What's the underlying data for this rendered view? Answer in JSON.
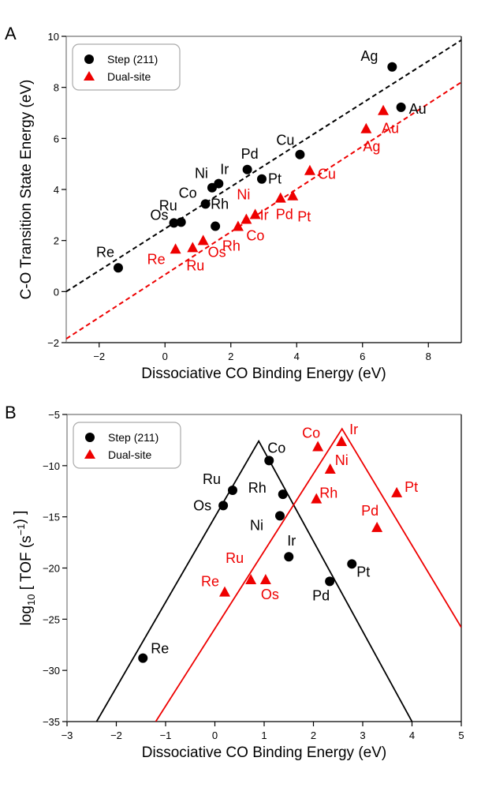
{
  "colors": {
    "step": "#000000",
    "dual": "#ee0000"
  },
  "chart_data": [
    {
      "panel": "A",
      "type": "scatter",
      "xlabel": "Dissociative CO Binding Energy (eV)",
      "ylabel": "C-O Transition State Energy (eV)",
      "xlim": [
        -3,
        9
      ],
      "ylim": [
        -2,
        10
      ],
      "xticks": [
        -2,
        0,
        2,
        4,
        6,
        8
      ],
      "yticks": [
        -2,
        0,
        2,
        4,
        6,
        8,
        10
      ],
      "legend": {
        "placement": "top-left",
        "entries": [
          "Step (211)",
          "Dual-site"
        ]
      },
      "series": [
        {
          "name": "Step (211)",
          "marker": "circle",
          "color": "#000000",
          "points": [
            {
              "label": "Re",
              "x": -1.42,
              "y": 0.93
            },
            {
              "label": "Os",
              "x": 0.27,
              "y": 2.69
            },
            {
              "label": "Ru",
              "x": 0.49,
              "y": 2.72
            },
            {
              "label": "Co",
              "x": 1.23,
              "y": 3.43
            },
            {
              "label": "Ni",
              "x": 1.43,
              "y": 4.07
            },
            {
              "label": "Ir",
              "x": 1.63,
              "y": 4.23
            },
            {
              "label": "Rh",
              "x": 1.53,
              "y": 2.56
            },
            {
              "label": "Pd",
              "x": 2.5,
              "y": 4.78
            },
            {
              "label": "Pt",
              "x": 2.94,
              "y": 4.41
            },
            {
              "label": "Cu",
              "x": 4.1,
              "y": 5.37
            },
            {
              "label": "Ag",
              "x": 6.9,
              "y": 8.8
            },
            {
              "label": "Au",
              "x": 7.17,
              "y": 7.22
            }
          ],
          "fit_line": {
            "x": [
              -3,
              9
            ],
            "y": [
              0.0,
              9.85
            ],
            "style": "dashed"
          }
        },
        {
          "name": "Dual-site",
          "marker": "triangle",
          "color": "#ee0000",
          "points": [
            {
              "label": "Re",
              "x": 0.32,
              "y": 1.64
            },
            {
              "label": "Ru",
              "x": 0.84,
              "y": 1.7
            },
            {
              "label": "Os",
              "x": 1.16,
              "y": 1.98
            },
            {
              "label": "Rh",
              "x": 2.22,
              "y": 2.53
            },
            {
              "label": "Co",
              "x": 2.47,
              "y": 2.81
            },
            {
              "label": "Ni",
              "x": 2.47,
              "y": 2.81
            },
            {
              "label": "Ir",
              "x": 2.74,
              "y": 3.0
            },
            {
              "label": "Pd",
              "x": 3.51,
              "y": 3.64
            },
            {
              "label": "Pt",
              "x": 3.88,
              "y": 3.73
            },
            {
              "label": "Cu",
              "x": 4.4,
              "y": 4.72
            },
            {
              "label": "Ag",
              "x": 6.11,
              "y": 6.36
            },
            {
              "label": "Au",
              "x": 6.63,
              "y": 7.07
            }
          ],
          "fit_line": {
            "x": [
              -3,
              9
            ],
            "y": [
              -1.85,
              8.2
            ],
            "style": "dashed"
          }
        }
      ]
    },
    {
      "panel": "B",
      "type": "scatter",
      "xlabel": "Dissociative CO Binding Energy (eV)",
      "ylabel_prefix": "log",
      "ylabel_sub": "10",
      "ylabel_main": "[ TOF (s",
      "ylabel_sup": "−1",
      "ylabel_suffix": ") ]",
      "xlim": [
        -3,
        5
      ],
      "ylim": [
        -35,
        -5
      ],
      "xticks": [
        -3,
        -2,
        -1,
        0,
        1,
        2,
        3,
        4,
        5
      ],
      "yticks": [
        -35,
        -30,
        -25,
        -20,
        -15,
        -10,
        -5
      ],
      "legend": {
        "placement": "top-left",
        "entries": [
          "Step (211)",
          "Dual-site"
        ]
      },
      "series": [
        {
          "name": "Step (211)",
          "marker": "circle",
          "color": "#000000",
          "points": [
            {
              "label": "Re",
              "x": -1.46,
              "y": -28.8
            },
            {
              "label": "Os",
              "x": 0.17,
              "y": -13.9
            },
            {
              "label": "Ru",
              "x": 0.36,
              "y": -12.4
            },
            {
              "label": "Co",
              "x": 1.1,
              "y": -9.5
            },
            {
              "label": "Rh",
              "x": 1.38,
              "y": -12.8
            },
            {
              "label": "Ni",
              "x": 1.32,
              "y": -14.9
            },
            {
              "label": "Ir",
              "x": 1.5,
              "y": -18.9
            },
            {
              "label": "Pd",
              "x": 2.33,
              "y": -21.3
            },
            {
              "label": "Pt",
              "x": 2.78,
              "y": -19.6
            }
          ],
          "volcano": {
            "x": [
              -2.4,
              0.89,
              4.0
            ],
            "y": [
              -35,
              -7.6,
              -35
            ]
          }
        },
        {
          "name": "Dual-site",
          "marker": "triangle",
          "color": "#ee0000",
          "points": [
            {
              "label": "Co",
              "x": 2.09,
              "y": -8.2
            },
            {
              "label": "Ir",
              "x": 2.57,
              "y": -7.7
            },
            {
              "label": "Ni",
              "x": 2.34,
              "y": -10.4
            },
            {
              "label": "Rh",
              "x": 2.06,
              "y": -13.3
            },
            {
              "label": "Pt",
              "x": 3.69,
              "y": -12.7
            },
            {
              "label": "Pd",
              "x": 3.29,
              "y": -16.1
            },
            {
              "label": "Re",
              "x": 0.2,
              "y": -22.4
            },
            {
              "label": "Ru",
              "x": 0.73,
              "y": -21.2
            },
            {
              "label": "Os",
              "x": 1.03,
              "y": -21.2
            }
          ],
          "volcano": {
            "x": [
              -1.2,
              2.58,
              5.0
            ],
            "y": [
              -35,
              -6.4,
              -25.8
            ]
          }
        }
      ]
    }
  ],
  "panel_labels": [
    "A",
    "B"
  ]
}
